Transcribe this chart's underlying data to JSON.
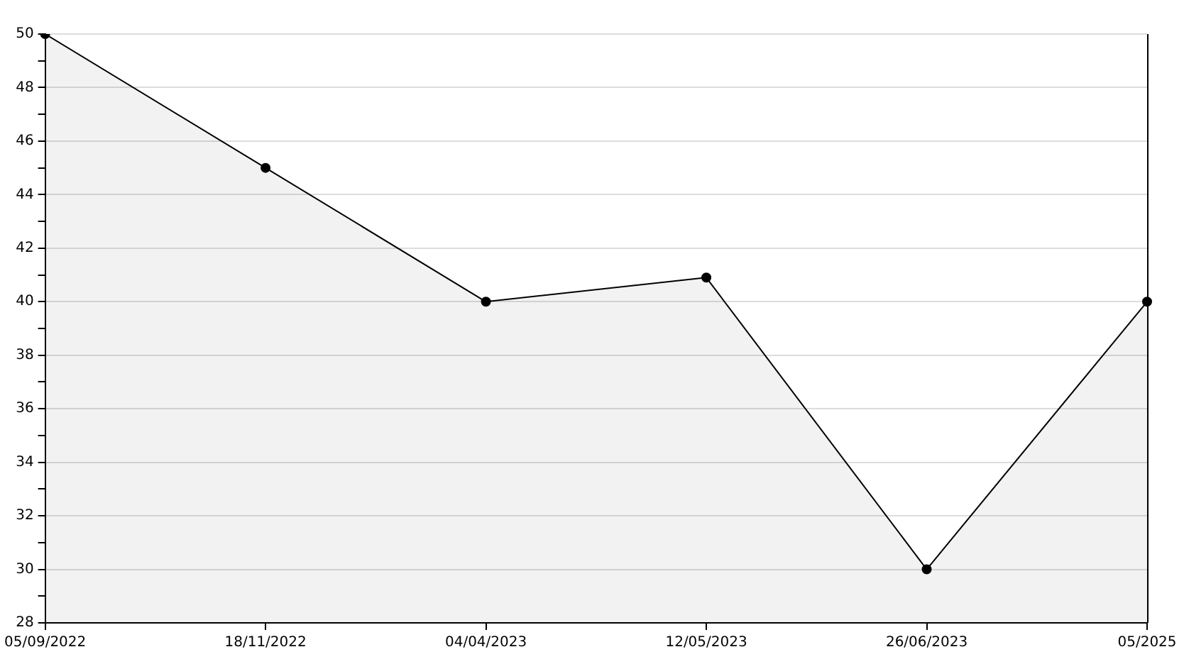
{
  "chart_data": {
    "type": "area",
    "categories": [
      "05/09/2022",
      "18/11/2022",
      "04/04/2023",
      "12/05/2023",
      "26/06/2023",
      "05/2025"
    ],
    "series": [
      {
        "color": "#000000",
        "values": [
          50,
          45,
          40,
          40.9,
          30,
          40
        ]
      }
    ],
    "ylim": [
      28,
      50
    ],
    "yticks": [
      28,
      {
        "value": 29,
        "label": null
      },
      30,
      {
        "value": 31,
        "label": null
      },
      32,
      {
        "value": 33,
        "label": null
      },
      34,
      {
        "value": 35,
        "label": null
      },
      36,
      {
        "value": 37,
        "label": null
      },
      38,
      {
        "value": 39,
        "label": null
      },
      40,
      {
        "value": 41,
        "label": null
      },
      42,
      {
        "value": 43,
        "label": null
      },
      44,
      {
        "value": 45,
        "label": null
      },
      46,
      {
        "value": 47,
        "label": null
      },
      48,
      {
        "value": 49,
        "label": null
      },
      50
    ],
    "grid": "y",
    "marker": "circle",
    "line_style": "solid",
    "legend": false
  }
}
